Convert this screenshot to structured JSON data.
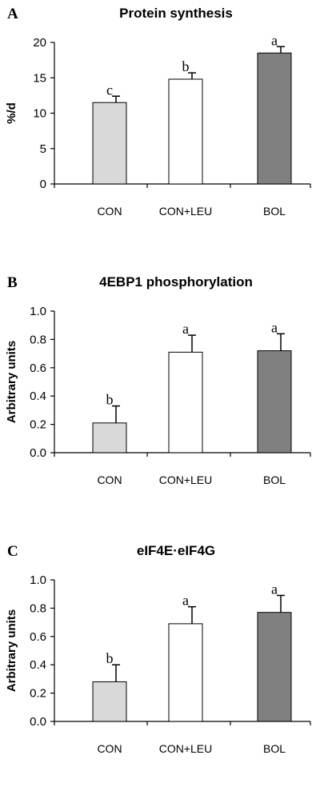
{
  "chart_data": [
    {
      "panel": "A",
      "type": "bar",
      "title": "Protein synthesis",
      "xlabel": "",
      "ylabel": "%/d",
      "categories": [
        "CON",
        "CON+LEU",
        "BOL"
      ],
      "values": [
        11.5,
        14.8,
        18.5
      ],
      "errors": [
        0.9,
        0.9,
        0.9
      ],
      "significance": [
        "c",
        "b",
        "a"
      ],
      "colors": [
        "#d9d9d9",
        "#ffffff",
        "#808080"
      ],
      "ylim": [
        0,
        20
      ],
      "yticks": [
        0,
        5,
        10,
        15,
        20
      ],
      "ytick_labels": [
        "0",
        "5",
        "10",
        "15",
        "20"
      ]
    },
    {
      "panel": "B",
      "type": "bar",
      "title": "4EBP1 phosphorylation",
      "xlabel": "",
      "ylabel": "Arbitrary units",
      "categories": [
        "CON",
        "CON+LEU",
        "BOL"
      ],
      "values": [
        0.21,
        0.71,
        0.72
      ],
      "errors": [
        0.12,
        0.12,
        0.12
      ],
      "significance": [
        "b",
        "a",
        "a"
      ],
      "colors": [
        "#d9d9d9",
        "#ffffff",
        "#808080"
      ],
      "ylim": [
        0,
        1.0
      ],
      "yticks": [
        0,
        0.2,
        0.4,
        0.6,
        0.8,
        1.0
      ],
      "ytick_labels": [
        "0.0",
        "0.2",
        "0.4",
        "0.6",
        "0.8",
        "1.0"
      ]
    },
    {
      "panel": "C",
      "type": "bar",
      "title": "eIF4E·eIF4G",
      "xlabel": "",
      "ylabel": "Arbitrary units",
      "categories": [
        "CON",
        "CON+LEU",
        "BOL"
      ],
      "values": [
        0.28,
        0.69,
        0.77
      ],
      "errors": [
        0.12,
        0.12,
        0.12
      ],
      "significance": [
        "b",
        "a",
        "a"
      ],
      "colors": [
        "#d9d9d9",
        "#ffffff",
        "#808080"
      ],
      "ylim": [
        0,
        1.0
      ],
      "yticks": [
        0,
        0.2,
        0.4,
        0.6,
        0.8,
        1.0
      ],
      "ytick_labels": [
        "0.0",
        "0.2",
        "0.4",
        "0.6",
        "0.8",
        "1.0"
      ]
    }
  ]
}
